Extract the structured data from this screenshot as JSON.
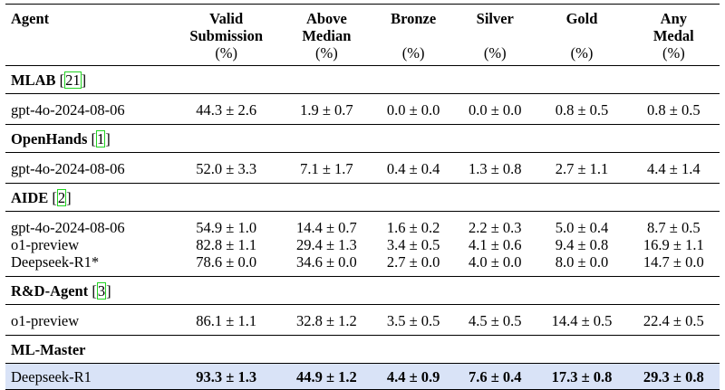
{
  "headers": {
    "agent": "Agent",
    "cols": [
      {
        "line1": "Valid",
        "line2": "Submission",
        "unit": "(%)"
      },
      {
        "line1": "Above",
        "line2": "Median",
        "unit": "(%)"
      },
      {
        "line1": "Bronze",
        "line2": "",
        "unit": "(%)"
      },
      {
        "line1": "Silver",
        "line2": "",
        "unit": "(%)"
      },
      {
        "line1": "Gold",
        "line2": "",
        "unit": "(%)"
      },
      {
        "line1": "Any",
        "line2": "Medal",
        "unit": "(%)"
      }
    ]
  },
  "groups": [
    {
      "name": "MLAB",
      "ref": "21",
      "rows": [
        {
          "agent": "gpt-4o-2024-08-06",
          "values": [
            "44.3 ± 2.6",
            "1.9 ± 0.7",
            "0.0 ± 0.0",
            "0.0 ± 0.0",
            "0.8 ± 0.5",
            "0.8 ± 0.5"
          ]
        }
      ]
    },
    {
      "name": "OpenHands",
      "ref": "1",
      "rows": [
        {
          "agent": "gpt-4o-2024-08-06",
          "values": [
            "52.0 ± 3.3",
            "7.1 ± 1.7",
            "0.4 ± 0.4",
            "1.3 ± 0.8",
            "2.7 ± 1.1",
            "4.4 ± 1.4"
          ]
        }
      ]
    },
    {
      "name": "AIDE",
      "ref": "2",
      "rows": [
        {
          "agent": "gpt-4o-2024-08-06",
          "values": [
            "54.9 ± 1.0",
            "14.4 ± 0.7",
            "1.6 ± 0.2",
            "2.2 ± 0.3",
            "5.0 ± 0.4",
            "8.7 ± 0.5"
          ]
        },
        {
          "agent": "o1-preview",
          "values": [
            "82.8 ± 1.1",
            "29.4 ± 1.3",
            "3.4 ± 0.5",
            "4.1 ± 0.6",
            "9.4 ± 0.8",
            "16.9 ± 1.1"
          ]
        },
        {
          "agent": "Deepseek-R1*",
          "values": [
            "78.6 ± 0.0",
            "34.6 ± 0.0",
            "2.7 ± 0.0",
            "4.0 ± 0.0",
            "8.0 ± 0.0",
            "14.7 ± 0.0"
          ]
        }
      ]
    },
    {
      "name": "R&D-Agent",
      "ref": "3",
      "rows": [
        {
          "agent": "o1-preview",
          "values": [
            "86.1 ± 1.1",
            "32.8 ± 1.2",
            "3.5 ± 0.5",
            "4.5 ± 0.5",
            "14.4 ± 0.5",
            "22.4 ± 0.5"
          ]
        }
      ]
    },
    {
      "name": "ML-Master",
      "ref": "",
      "rows": [
        {
          "agent": "Deepseek-R1",
          "values": [
            "93.3 ± 1.3",
            "44.9 ± 1.2",
            "4.4 ± 0.9",
            "7.6 ± 0.4",
            "17.3 ± 0.8",
            "29.3 ± 0.8"
          ],
          "highlight": true
        }
      ]
    }
  ],
  "colors": {
    "highlight_row": "#d9e3f7",
    "citation_box": "#21d321"
  }
}
